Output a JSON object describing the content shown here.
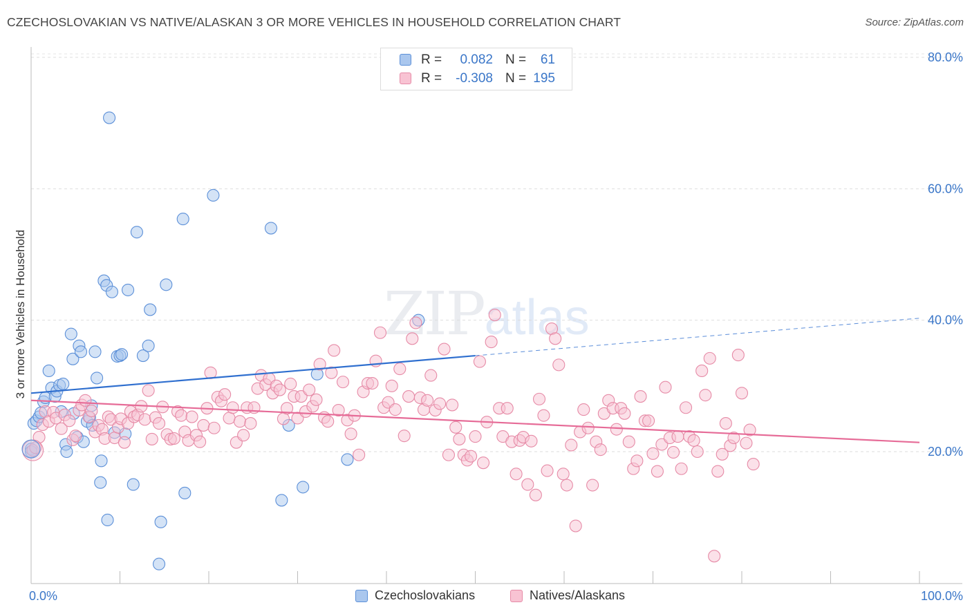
{
  "title": "CZECHOSLOVAKIAN VS NATIVE/ALASKAN 3 OR MORE VEHICLES IN HOUSEHOLD CORRELATION CHART",
  "source": "Source: ZipAtlas.com",
  "watermark": {
    "zip": "ZIP",
    "atlas": "atlas"
  },
  "legend_top": [
    {
      "r_label": "R =",
      "r_value": "0.082",
      "n_label": "N =",
      "n_value": "61",
      "color": "#aac7ee",
      "stroke": "#5b8fd8"
    },
    {
      "r_label": "R =",
      "r_value": "-0.308",
      "n_label": "N =",
      "n_value": "195",
      "color": "#f8c3d3",
      "stroke": "#e68aa6"
    }
  ],
  "legend_bottom": [
    {
      "label": "Czechoslovakians",
      "color": "#aac7ee",
      "stroke": "#5b8fd8"
    },
    {
      "label": "Natives/Alaskans",
      "color": "#f8c3d3",
      "stroke": "#e68aa6"
    }
  ],
  "chart_data": {
    "type": "scatter",
    "ylabel": "3 or more Vehicles in Household",
    "xlim": [
      0,
      100
    ],
    "ylim": [
      0,
      85
    ],
    "x_tick_labels": [
      {
        "value": 0,
        "label": "0.0%"
      },
      {
        "value": 100,
        "label": "100.0%"
      }
    ],
    "y_tick_labels": [
      {
        "value": 20,
        "label": "20.0%"
      },
      {
        "value": 40,
        "label": "40.0%"
      },
      {
        "value": 60,
        "label": "60.0%"
      },
      {
        "value": 80,
        "label": "80.0%"
      }
    ],
    "grid": true,
    "series": [
      {
        "name": "Czechoslovakians",
        "fill": "#aac7ee",
        "stroke": "#5b8fd8",
        "trend": {
          "x0": 0,
          "y0": 28.9,
          "x1": 50,
          "y1": 34.6,
          "dash_to_x": 100,
          "dash_to_y": 40.3,
          "color": "#2f6fcf"
        },
        "points": [
          [
            0.0,
            20.4
          ],
          [
            0.0,
            20.0
          ],
          [
            0.3,
            24.3
          ],
          [
            0.6,
            24.7
          ],
          [
            0.9,
            25.3
          ],
          [
            1.1,
            25.9
          ],
          [
            1.4,
            27.6
          ],
          [
            1.6,
            28.2
          ],
          [
            2.0,
            32.3
          ],
          [
            2.3,
            29.7
          ],
          [
            2.7,
            28.4
          ],
          [
            2.9,
            29.2
          ],
          [
            3.2,
            30.1
          ],
          [
            3.6,
            30.3
          ],
          [
            3.4,
            26.1
          ],
          [
            3.9,
            21.1
          ],
          [
            4.0,
            20.0
          ],
          [
            4.5,
            37.9
          ],
          [
            4.8,
            25.8
          ],
          [
            4.7,
            34.1
          ],
          [
            5.2,
            22.2
          ],
          [
            5.4,
            36.1
          ],
          [
            5.6,
            35.2
          ],
          [
            5.9,
            21.5
          ],
          [
            6.3,
            24.6
          ],
          [
            6.6,
            25.2
          ],
          [
            6.9,
            24.0
          ],
          [
            6.8,
            27.0
          ],
          [
            7.2,
            35.2
          ],
          [
            7.4,
            31.2
          ],
          [
            7.9,
            18.6
          ],
          [
            7.8,
            15.3
          ],
          [
            8.2,
            46.0
          ],
          [
            8.5,
            45.3
          ],
          [
            8.6,
            9.6
          ],
          [
            8.8,
            70.8
          ],
          [
            9.1,
            44.3
          ],
          [
            9.4,
            22.9
          ],
          [
            9.7,
            34.5
          ],
          [
            10.0,
            34.6
          ],
          [
            10.2,
            34.8
          ],
          [
            10.6,
            22.7
          ],
          [
            10.9,
            44.6
          ],
          [
            11.5,
            15.0
          ],
          [
            11.9,
            53.4
          ],
          [
            12.6,
            34.6
          ],
          [
            13.2,
            36.1
          ],
          [
            13.4,
            41.6
          ],
          [
            14.4,
            2.9
          ],
          [
            14.6,
            9.3
          ],
          [
            15.2,
            45.4
          ],
          [
            17.1,
            55.4
          ],
          [
            17.3,
            13.7
          ],
          [
            20.5,
            59.0
          ],
          [
            27.0,
            54.0
          ],
          [
            28.2,
            12.6
          ],
          [
            29.0,
            24.0
          ],
          [
            30.6,
            14.6
          ],
          [
            32.2,
            31.8
          ],
          [
            35.6,
            18.8
          ],
          [
            43.6,
            40.0
          ]
        ]
      },
      {
        "name": "Natives/Alaskans",
        "fill": "#f8c3d3",
        "stroke": "#e68aa6",
        "trend": {
          "x0": 0,
          "y0": 27.8,
          "x1": 100,
          "y1": 21.4,
          "color": "#e66b97"
        },
        "points": [
          [
            0.2,
            20.2
          ],
          [
            0.5,
            20.6
          ],
          [
            0.9,
            22.2
          ],
          [
            1.3,
            24.1
          ],
          [
            1.6,
            26.1
          ],
          [
            2.0,
            24.6
          ],
          [
            2.5,
            26.0
          ],
          [
            2.8,
            25.1
          ],
          [
            3.4,
            23.5
          ],
          [
            3.8,
            25.6
          ],
          [
            4.3,
            24.7
          ],
          [
            4.7,
            21.8
          ],
          [
            5.0,
            22.4
          ],
          [
            5.4,
            26.3
          ],
          [
            5.7,
            27.1
          ],
          [
            6.1,
            27.8
          ],
          [
            6.5,
            25.3
          ],
          [
            6.8,
            26.2
          ],
          [
            7.2,
            23.0
          ],
          [
            7.6,
            24.0
          ],
          [
            8.0,
            23.4
          ],
          [
            8.3,
            22.0
          ],
          [
            8.7,
            25.3
          ],
          [
            9.0,
            24.9
          ],
          [
            9.4,
            22.1
          ],
          [
            9.8,
            23.7
          ],
          [
            10.1,
            25.0
          ],
          [
            10.5,
            21.4
          ],
          [
            10.9,
            24.3
          ],
          [
            11.2,
            26.1
          ],
          [
            11.6,
            25.3
          ],
          [
            12.0,
            25.6
          ],
          [
            12.4,
            26.9
          ],
          [
            12.8,
            24.9
          ],
          [
            13.2,
            29.3
          ],
          [
            13.6,
            21.9
          ],
          [
            14.0,
            25.2
          ],
          [
            14.4,
            24.3
          ],
          [
            14.8,
            26.8
          ],
          [
            15.3,
            22.6
          ],
          [
            15.7,
            21.9
          ],
          [
            16.1,
            22.0
          ],
          [
            16.5,
            26.1
          ],
          [
            16.9,
            25.5
          ],
          [
            17.3,
            23.0
          ],
          [
            17.7,
            21.7
          ],
          [
            18.1,
            25.3
          ],
          [
            18.6,
            22.5
          ],
          [
            19.0,
            21.5
          ],
          [
            19.4,
            24.0
          ],
          [
            19.8,
            26.6
          ],
          [
            20.2,
            32.0
          ],
          [
            20.6,
            23.6
          ],
          [
            21.0,
            28.3
          ],
          [
            21.4,
            27.7
          ],
          [
            21.8,
            28.7
          ],
          [
            22.3,
            25.1
          ],
          [
            22.7,
            26.7
          ],
          [
            23.1,
            21.4
          ],
          [
            23.5,
            24.6
          ],
          [
            23.9,
            22.5
          ],
          [
            24.3,
            26.7
          ],
          [
            24.7,
            24.3
          ],
          [
            25.1,
            26.7
          ],
          [
            25.5,
            29.6
          ],
          [
            25.9,
            31.6
          ],
          [
            26.4,
            30.2
          ],
          [
            26.8,
            31.1
          ],
          [
            27.2,
            28.9
          ],
          [
            27.6,
            30.0
          ],
          [
            28.0,
            29.4
          ],
          [
            28.4,
            25.0
          ],
          [
            28.8,
            26.6
          ],
          [
            29.2,
            30.3
          ],
          [
            29.6,
            28.4
          ],
          [
            30.0,
            25.1
          ],
          [
            30.4,
            28.4
          ],
          [
            30.9,
            26.1
          ],
          [
            31.3,
            29.4
          ],
          [
            31.7,
            26.9
          ],
          [
            32.1,
            27.9
          ],
          [
            32.5,
            33.3
          ],
          [
            33.0,
            25.2
          ],
          [
            33.4,
            24.6
          ],
          [
            33.8,
            32.0
          ],
          [
            34.1,
            35.4
          ],
          [
            34.6,
            26.3
          ],
          [
            35.1,
            30.6
          ],
          [
            35.6,
            24.8
          ],
          [
            36.0,
            22.7
          ],
          [
            36.4,
            25.5
          ],
          [
            36.9,
            19.5
          ],
          [
            37.4,
            29.1
          ],
          [
            37.9,
            30.4
          ],
          [
            38.4,
            30.4
          ],
          [
            38.8,
            33.8
          ],
          [
            39.3,
            38.1
          ],
          [
            39.7,
            26.7
          ],
          [
            40.2,
            27.5
          ],
          [
            40.6,
            30.0
          ],
          [
            41.0,
            26.4
          ],
          [
            41.5,
            32.6
          ],
          [
            42.0,
            22.4
          ],
          [
            42.5,
            28.4
          ],
          [
            42.9,
            37.2
          ],
          [
            43.3,
            39.6
          ],
          [
            43.8,
            28.2
          ],
          [
            44.2,
            26.4
          ],
          [
            44.6,
            27.8
          ],
          [
            45.0,
            31.6
          ],
          [
            45.5,
            26.3
          ],
          [
            46.0,
            27.3
          ],
          [
            46.5,
            35.6
          ],
          [
            47.0,
            19.5
          ],
          [
            47.4,
            27.1
          ],
          [
            47.8,
            23.7
          ],
          [
            48.2,
            21.9
          ],
          [
            48.7,
            19.5
          ],
          [
            49.1,
            18.7
          ],
          [
            49.5,
            19.3
          ],
          [
            50.0,
            22.3
          ],
          [
            50.5,
            33.7
          ],
          [
            50.9,
            18.3
          ],
          [
            51.3,
            24.5
          ],
          [
            51.8,
            36.7
          ],
          [
            52.2,
            40.8
          ],
          [
            52.7,
            26.6
          ],
          [
            53.1,
            22.3
          ],
          [
            53.6,
            26.6
          ],
          [
            54.1,
            21.5
          ],
          [
            54.6,
            16.6
          ],
          [
            55.0,
            21.7
          ],
          [
            55.4,
            22.2
          ],
          [
            55.9,
            15.0
          ],
          [
            56.3,
            21.6
          ],
          [
            56.8,
            13.4
          ],
          [
            57.2,
            28.0
          ],
          [
            57.7,
            25.5
          ],
          [
            58.1,
            17.1
          ],
          [
            58.6,
            38.7
          ],
          [
            59.0,
            37.2
          ],
          [
            59.4,
            33.2
          ],
          [
            59.9,
            16.6
          ],
          [
            60.3,
            14.9
          ],
          [
            60.8,
            21.0
          ],
          [
            61.3,
            8.7
          ],
          [
            61.8,
            23.0
          ],
          [
            62.2,
            26.4
          ],
          [
            62.7,
            23.6
          ],
          [
            63.2,
            14.9
          ],
          [
            63.6,
            21.5
          ],
          [
            64.1,
            20.3
          ],
          [
            64.5,
            25.8
          ],
          [
            65.0,
            27.8
          ],
          [
            65.5,
            26.6
          ],
          [
            65.9,
            23.4
          ],
          [
            66.4,
            26.6
          ],
          [
            66.8,
            25.8
          ],
          [
            67.3,
            21.5
          ],
          [
            67.8,
            17.4
          ],
          [
            68.2,
            18.6
          ],
          [
            68.6,
            28.4
          ],
          [
            69.1,
            24.7
          ],
          [
            69.5,
            24.7
          ],
          [
            70.0,
            19.7
          ],
          [
            70.5,
            17.0
          ],
          [
            71.0,
            21.1
          ],
          [
            71.4,
            29.8
          ],
          [
            71.9,
            22.1
          ],
          [
            72.3,
            19.9
          ],
          [
            72.8,
            22.3
          ],
          [
            73.2,
            17.4
          ],
          [
            73.7,
            26.7
          ],
          [
            74.1,
            22.3
          ],
          [
            74.6,
            21.7
          ],
          [
            75.0,
            20.0
          ],
          [
            75.5,
            32.3
          ],
          [
            75.9,
            28.6
          ],
          [
            76.4,
            34.2
          ],
          [
            76.9,
            4.1
          ],
          [
            77.3,
            17.0
          ],
          [
            77.8,
            19.6
          ],
          [
            78.2,
            24.3
          ],
          [
            78.7,
            20.9
          ],
          [
            79.1,
            22.1
          ],
          [
            79.6,
            34.7
          ],
          [
            80.0,
            28.9
          ],
          [
            80.5,
            21.3
          ],
          [
            80.9,
            23.3
          ],
          [
            81.3,
            18.1
          ]
        ]
      }
    ]
  }
}
